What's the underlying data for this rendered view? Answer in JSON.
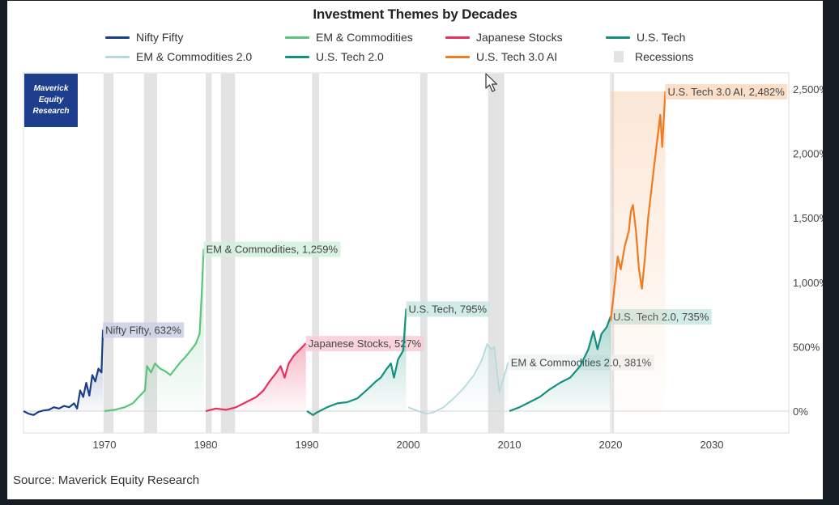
{
  "logo": {
    "line1": "Maverick",
    "line2": "Equity",
    "line3": "Research"
  },
  "source": "Source: Maverick Equity Research",
  "chart_data": {
    "type": "line",
    "title": "Investment Themes by Decades",
    "xlabel": "",
    "ylabel": "",
    "xlim": [
      1962,
      2037.6
    ],
    "ylim": [
      -160,
      2600
    ],
    "x_ticks": [
      1970,
      1980,
      1990,
      2000,
      2010,
      2020,
      2030
    ],
    "x_tick_labels": [
      "1970",
      "1980",
      "1990",
      "2000",
      "2010",
      "2020",
      "2030"
    ],
    "y_ticks": [
      0,
      500,
      1000,
      1500,
      2000,
      2500
    ],
    "y_tick_labels": [
      "0%",
      "500%",
      "1,000%",
      "1,500%",
      "2,000%",
      "2,500%"
    ],
    "y_axis_side": "right",
    "grid": "horizontal at 0% only",
    "legend": {
      "placement": "top",
      "entries": [
        {
          "label": "Nifty Fifty",
          "color": "#1a3d8a",
          "kind": "line"
        },
        {
          "label": "EM & Commodities",
          "color": "#5cc47e",
          "kind": "line"
        },
        {
          "label": "Japanese Stocks",
          "color": "#e8315f",
          "kind": "line"
        },
        {
          "label": "U.S. Tech",
          "color": "#14907f",
          "kind": "line"
        },
        {
          "label": "EM & Commodities 2.0",
          "color": "#b6d9df",
          "kind": "line"
        },
        {
          "label": "U.S. Tech 2.0",
          "color": "#14907f",
          "kind": "line"
        },
        {
          "label": "U.S. Tech 3.0 AI",
          "color": "#f07a1e",
          "kind": "line"
        },
        {
          "label": "Recessions",
          "color": "#e3e3e3",
          "kind": "box"
        }
      ]
    },
    "recessions": [
      [
        1969.9,
        1970.9
      ],
      [
        1973.9,
        1975.2
      ],
      [
        1980.0,
        1980.6
      ],
      [
        1981.5,
        1982.9
      ],
      [
        1990.5,
        1991.2
      ],
      [
        2001.2,
        2001.9
      ],
      [
        2007.9,
        2009.5
      ],
      [
        2020.1,
        2020.3
      ]
    ],
    "series": [
      {
        "name": "Nifty Fifty",
        "color": "#1a3d8a",
        "fill": "#1a3d8a",
        "label": "Nifty Fifty, 632%",
        "label_bg": "#c8d1e3",
        "points": [
          [
            1962,
            0
          ],
          [
            1962.5,
            -20
          ],
          [
            1963,
            -30
          ],
          [
            1963.5,
            -5
          ],
          [
            1964,
            5
          ],
          [
            1964.5,
            10
          ],
          [
            1965,
            30
          ],
          [
            1965.5,
            20
          ],
          [
            1966,
            40
          ],
          [
            1966.5,
            30
          ],
          [
            1967,
            60
          ],
          [
            1967.3,
            20
          ],
          [
            1967.6,
            160
          ],
          [
            1967.9,
            110
          ],
          [
            1968.2,
            220
          ],
          [
            1968.5,
            120
          ],
          [
            1968.8,
            280
          ],
          [
            1969.1,
            230
          ],
          [
            1969.4,
            330
          ],
          [
            1969.7,
            300
          ],
          [
            1969.85,
            632
          ]
        ]
      },
      {
        "name": "EM & Commodities",
        "color": "#5cc47e",
        "fill": "#5cc47e",
        "label": "EM & Commodities, 1,259%",
        "label_bg": "#d3f0dc",
        "points": [
          [
            1970,
            0
          ],
          [
            1971,
            10
          ],
          [
            1972,
            30
          ],
          [
            1972.8,
            60
          ],
          [
            1973.5,
            120
          ],
          [
            1974,
            160
          ],
          [
            1974.2,
            350
          ],
          [
            1974.6,
            300
          ],
          [
            1975,
            370
          ],
          [
            1975.5,
            330
          ],
          [
            1976,
            310
          ],
          [
            1976.5,
            280
          ],
          [
            1977,
            330
          ],
          [
            1977.5,
            380
          ],
          [
            1978,
            420
          ],
          [
            1978.5,
            470
          ],
          [
            1979,
            520
          ],
          [
            1979.4,
            600
          ],
          [
            1979.6,
            900
          ],
          [
            1979.8,
            1259
          ]
        ]
      },
      {
        "name": "Japanese Stocks",
        "color": "#e8315f",
        "fill": "#e8315f",
        "label": "Japanese Stocks, 527%",
        "label_bg": "#f8ccd7",
        "points": [
          [
            1980,
            0
          ],
          [
            1981,
            20
          ],
          [
            1982,
            10
          ],
          [
            1983,
            30
          ],
          [
            1984,
            70
          ],
          [
            1985,
            110
          ],
          [
            1985.7,
            160
          ],
          [
            1986.3,
            230
          ],
          [
            1987,
            300
          ],
          [
            1987.4,
            350
          ],
          [
            1987.8,
            260
          ],
          [
            1988.2,
            370
          ],
          [
            1988.7,
            430
          ],
          [
            1989.2,
            470
          ],
          [
            1989.9,
            527
          ]
        ]
      },
      {
        "name": "U.S. Tech",
        "color": "#14907f",
        "fill": "#14907f",
        "label": "U.S. Tech, 795%",
        "label_bg": "#c9e8e3",
        "points": [
          [
            1990,
            0
          ],
          [
            1990.6,
            -30
          ],
          [
            1991,
            -10
          ],
          [
            1992,
            30
          ],
          [
            1993,
            60
          ],
          [
            1994,
            70
          ],
          [
            1995,
            100
          ],
          [
            1996,
            170
          ],
          [
            1996.8,
            230
          ],
          [
            1997.3,
            260
          ],
          [
            1997.8,
            320
          ],
          [
            1998.3,
            370
          ],
          [
            1998.6,
            260
          ],
          [
            1999,
            400
          ],
          [
            1999.5,
            470
          ],
          [
            1999.8,
            795
          ]
        ]
      },
      {
        "name": "EM & Commodities 2.0",
        "color": "#b6d9df",
        "fill": "#b6d9df",
        "label": "EM & Commodities 2.0, 381%",
        "label_bg": "#eef3f3",
        "points": [
          [
            2000,
            30
          ],
          [
            2001,
            0
          ],
          [
            2001.8,
            -20
          ],
          [
            2002.5,
            -10
          ],
          [
            2003.5,
            30
          ],
          [
            2004.5,
            100
          ],
          [
            2005.5,
            180
          ],
          [
            2006.5,
            280
          ],
          [
            2007.3,
            400
          ],
          [
            2007.8,
            520
          ],
          [
            2008.2,
            480
          ],
          [
            2008.5,
            500
          ],
          [
            2009,
            150
          ],
          [
            2009.4,
            250
          ],
          [
            2009.9,
            381
          ]
        ]
      },
      {
        "name": "U.S. Tech 2.0",
        "color": "#14907f",
        "fill": "#14907f",
        "label": "U.S. Tech 2.0, 735%",
        "label_bg": "#c9e8e3",
        "points": [
          [
            2010,
            0
          ],
          [
            2011,
            30
          ],
          [
            2012,
            70
          ],
          [
            2013,
            110
          ],
          [
            2014,
            170
          ],
          [
            2015,
            220
          ],
          [
            2016,
            260
          ],
          [
            2017,
            350
          ],
          [
            2017.8,
            480
          ],
          [
            2018.3,
            620
          ],
          [
            2018.7,
            480
          ],
          [
            2019.1,
            600
          ],
          [
            2019.6,
            650
          ],
          [
            2020,
            735
          ]
        ]
      },
      {
        "name": "U.S. Tech 3.0 AI",
        "color": "#f07a1e",
        "fill": "#f9c9a4",
        "label": "U.S. Tech 3.0 AI, 2,482%",
        "label_bg": "#fbd9c0",
        "points": [
          [
            2020,
            700
          ],
          [
            2020.3,
            900
          ],
          [
            2020.7,
            1200
          ],
          [
            2021,
            1100
          ],
          [
            2021.4,
            1280
          ],
          [
            2021.8,
            1400
          ],
          [
            2022,
            1550
          ],
          [
            2022.2,
            1600
          ],
          [
            2022.5,
            1400
          ],
          [
            2022.8,
            1100
          ],
          [
            2023.1,
            950
          ],
          [
            2023.4,
            1200
          ],
          [
            2023.7,
            1500
          ],
          [
            2024,
            1700
          ],
          [
            2024.3,
            1900
          ],
          [
            2024.6,
            2100
          ],
          [
            2024.9,
            2300
          ],
          [
            2025.1,
            2050
          ],
          [
            2025.4,
            2482
          ]
        ]
      }
    ]
  }
}
